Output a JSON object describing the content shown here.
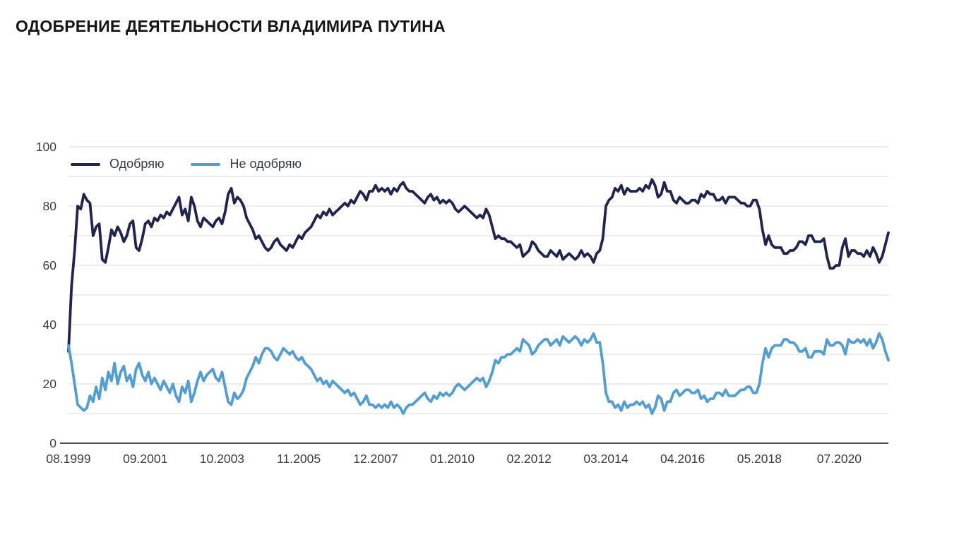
{
  "title": "ОДОБРЕНИЕ ДЕЯТЕЛЬНОСТИ ВЛАДИМИРА ПУТИНА",
  "colors": {
    "approve": "#21244f",
    "disapprove": "#539dd5",
    "grid": "#d9d9d9",
    "axis": "#4d4d4d",
    "tick_text": "#3d3d3d",
    "title_text": "#151515"
  },
  "legend": {
    "items": [
      {
        "label": "Одобряю",
        "color": "#21244f"
      },
      {
        "label": "Не одобряю",
        "color": "#539dd5"
      }
    ],
    "position": "top-left-inside-plot"
  },
  "chart_data": {
    "type": "line",
    "title": "ОДОБРЕНИЕ ДЕЯТЕЛЬНОСТИ ВЛАДИМИРА ПУТИНА",
    "xlabel": "",
    "ylabel": "",
    "x_unit": "month",
    "x_start": "08.1999",
    "x_end": "11.2021",
    "ylim": [
      0,
      100
    ],
    "y_ticks": [
      0,
      20,
      40,
      60,
      80,
      100
    ],
    "grid_step": 10,
    "grid": "horizontal-only",
    "legend_position": "top-left",
    "x_ticks": [
      {
        "label": "08.1999",
        "month_index": 0
      },
      {
        "label": "09.2001",
        "month_index": 25
      },
      {
        "label": "10.2003",
        "month_index": 50
      },
      {
        "label": "11.2005",
        "month_index": 75
      },
      {
        "label": "12.2007",
        "month_index": 100
      },
      {
        "label": "01.2010",
        "month_index": 125
      },
      {
        "label": "02.2012",
        "month_index": 150
      },
      {
        "label": "03.2014",
        "month_index": 175
      },
      {
        "label": "04.2016",
        "month_index": 200
      },
      {
        "label": "05.2018",
        "month_index": 225
      },
      {
        "label": "07.2020",
        "month_index": 251
      }
    ],
    "series": [
      {
        "name": "Одобряю",
        "color": "#21244f",
        "values": [
          31,
          53,
          65,
          80,
          79,
          84,
          82,
          81,
          70,
          73,
          74,
          62,
          61,
          66,
          72,
          70,
          73,
          71,
          68,
          70,
          74,
          75,
          66,
          65,
          69,
          74,
          75,
          73,
          76,
          75,
          77,
          76,
          78,
          77,
          79,
          81,
          83,
          77,
          79,
          75,
          83,
          80,
          75,
          73,
          76,
          75,
          74,
          73,
          75,
          76,
          74,
          78,
          84,
          86,
          81,
          83,
          82,
          80,
          76,
          74,
          72,
          69,
          70,
          68,
          66,
          65,
          66,
          68,
          69,
          67,
          66,
          65,
          67,
          66,
          68,
          70,
          69,
          71,
          72,
          73,
          75,
          77,
          76,
          78,
          77,
          79,
          77,
          78,
          79,
          80,
          81,
          80,
          82,
          81,
          83,
          85,
          84,
          82,
          85,
          85,
          87,
          85,
          86,
          85,
          86,
          84,
          86,
          85,
          87,
          88,
          86,
          85,
          85,
          84,
          83,
          82,
          81,
          83,
          84,
          82,
          83,
          81,
          82,
          81,
          82,
          81,
          79,
          78,
          79,
          80,
          79,
          78,
          77,
          76,
          77,
          76,
          79,
          77,
          73,
          69,
          70,
          69,
          69,
          68,
          68,
          67,
          66,
          67,
          63,
          64,
          65,
          68,
          67,
          65,
          64,
          63,
          63,
          65,
          64,
          63,
          65,
          62,
          63,
          64,
          63,
          62,
          63,
          65,
          63,
          64,
          63,
          61,
          64,
          65,
          69,
          80,
          82,
          83,
          86,
          85,
          87,
          84,
          86,
          85,
          85,
          85,
          86,
          85,
          87,
          86,
          89,
          87,
          83,
          84,
          88,
          85,
          85,
          82,
          81,
          83,
          82,
          81,
          81,
          82,
          82,
          81,
          84,
          83,
          85,
          84,
          84,
          82,
          82,
          83,
          81,
          83,
          83,
          83,
          82,
          81,
          81,
          80,
          80,
          82,
          82,
          79,
          72,
          67,
          70,
          67,
          66,
          66,
          66,
          64,
          64,
          65,
          65,
          66,
          68,
          68,
          67,
          70,
          70,
          68,
          68,
          68,
          69,
          63,
          59,
          59,
          60,
          60,
          66,
          69,
          63,
          65,
          65,
          64,
          64,
          63,
          65,
          63,
          66,
          64,
          61,
          63,
          67,
          71
        ]
      },
      {
        "name": "Не одобряю",
        "color": "#539dd5",
        "values": [
          33,
          27,
          20,
          13,
          12,
          11,
          12,
          16,
          14,
          19,
          15,
          22,
          18,
          24,
          21,
          27,
          20,
          24,
          26,
          21,
          23,
          19,
          25,
          27,
          23,
          21,
          24,
          20,
          22,
          20,
          18,
          21,
          19,
          17,
          20,
          16,
          14,
          19,
          17,
          21,
          14,
          17,
          21,
          24,
          21,
          23,
          24,
          25,
          22,
          21,
          24,
          19,
          14,
          13,
          17,
          15,
          16,
          18,
          22,
          24,
          26,
          29,
          27,
          30,
          32,
          32,
          31,
          29,
          28,
          30,
          32,
          31,
          30,
          31,
          29,
          28,
          29,
          27,
          26,
          25,
          23,
          21,
          22,
          20,
          21,
          19,
          21,
          20,
          19,
          18,
          17,
          18,
          16,
          17,
          15,
          13,
          14,
          16,
          13,
          13,
          12,
          13,
          12,
          13,
          12,
          14,
          12,
          13,
          12,
          10,
          12,
          13,
          13,
          14,
          15,
          16,
          17,
          15,
          14,
          16,
          15,
          17,
          16,
          17,
          16,
          17,
          19,
          20,
          19,
          18,
          19,
          20,
          21,
          22,
          21,
          22,
          19,
          21,
          24,
          28,
          27,
          29,
          29,
          30,
          30,
          31,
          32,
          31,
          35,
          34,
          33,
          30,
          31,
          33,
          34,
          35,
          35,
          33,
          34,
          35,
          33,
          36,
          35,
          34,
          35,
          36,
          35,
          33,
          35,
          34,
          35,
          37,
          34,
          34,
          27,
          17,
          14,
          14,
          12,
          13,
          11,
          14,
          12,
          13,
          13,
          14,
          13,
          14,
          12,
          13,
          10,
          12,
          16,
          15,
          11,
          14,
          14,
          17,
          18,
          16,
          17,
          18,
          18,
          17,
          17,
          18,
          15,
          16,
          14,
          15,
          15,
          17,
          17,
          16,
          18,
          16,
          16,
          16,
          17,
          18,
          18,
          19,
          19,
          17,
          17,
          20,
          27,
          32,
          29,
          32,
          33,
          33,
          33,
          35,
          35,
          34,
          34,
          33,
          31,
          31,
          32,
          29,
          29,
          31,
          31,
          31,
          30,
          35,
          33,
          33,
          34,
          34,
          33,
          30,
          35,
          34,
          34,
          35,
          34,
          35,
          33,
          35,
          32,
          34,
          37,
          35,
          31,
          28
        ]
      }
    ]
  }
}
